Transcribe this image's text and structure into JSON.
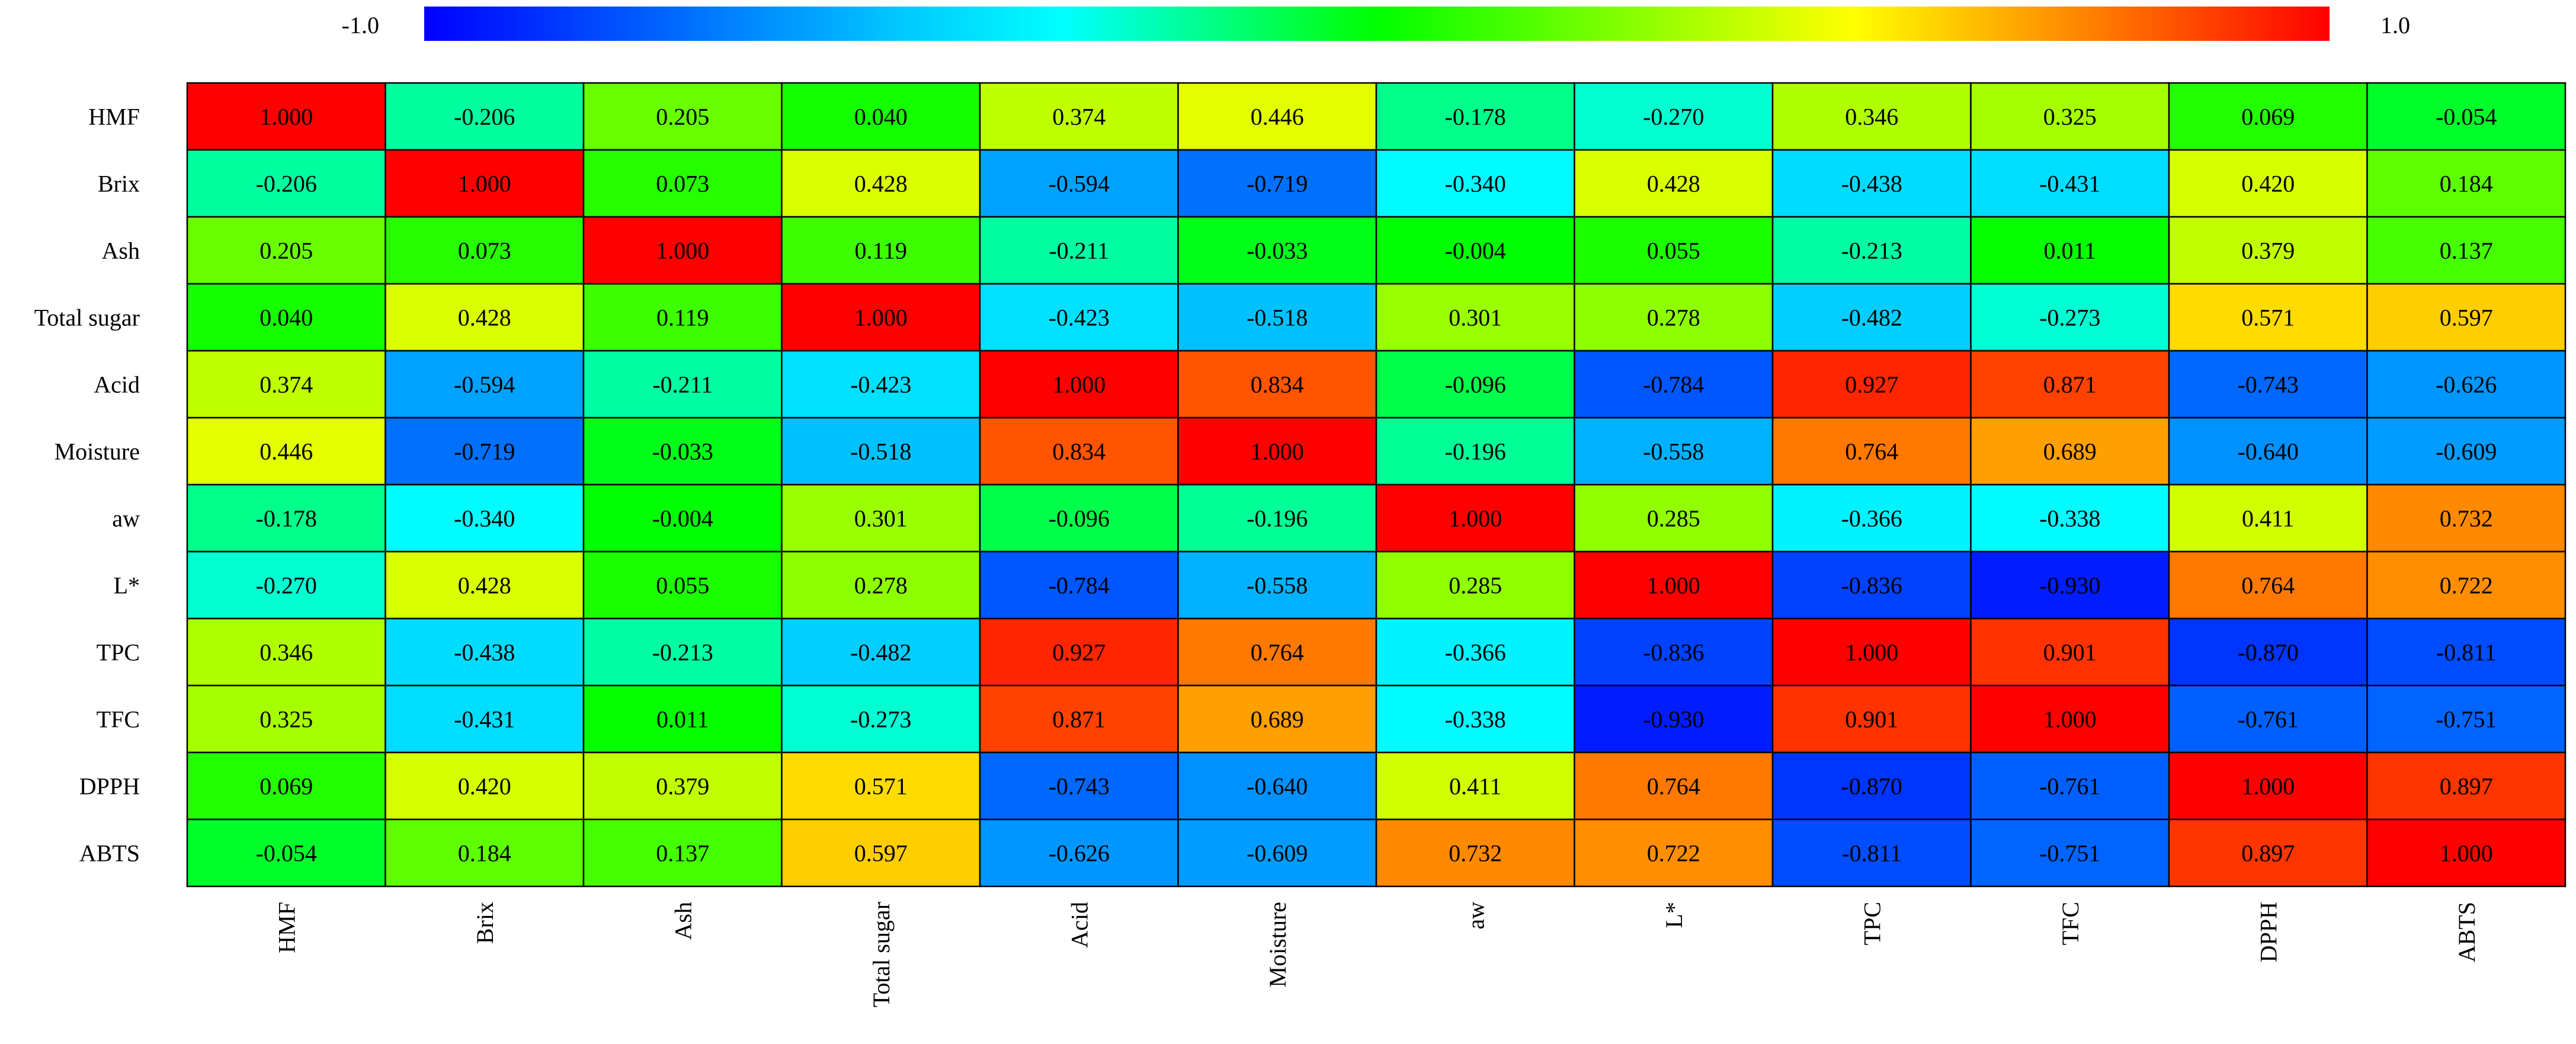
{
  "chart_data": {
    "type": "heatmap",
    "title": "",
    "variables": [
      "HMF",
      "Brix",
      "Ash",
      "Total sugar",
      "Acid",
      "Moisture",
      "aw",
      "L*",
      "TPC",
      "TFC",
      "DPPH",
      "ABTS"
    ],
    "matrix": [
      [
        1.0,
        -0.206,
        0.205,
        0.04,
        0.374,
        0.446,
        -0.178,
        -0.27,
        0.346,
        0.325,
        0.069,
        -0.054
      ],
      [
        -0.206,
        1.0,
        0.073,
        0.428,
        -0.594,
        -0.719,
        -0.34,
        0.428,
        -0.438,
        -0.431,
        0.42,
        0.184
      ],
      [
        0.205,
        0.073,
        1.0,
        0.119,
        -0.211,
        -0.033,
        -0.004,
        0.055,
        -0.213,
        0.011,
        0.379,
        0.137
      ],
      [
        0.04,
        0.428,
        0.119,
        1.0,
        -0.423,
        -0.518,
        0.301,
        0.278,
        -0.482,
        -0.273,
        0.571,
        0.597
      ],
      [
        0.374,
        -0.594,
        -0.211,
        -0.423,
        1.0,
        0.834,
        -0.096,
        -0.784,
        0.927,
        0.871,
        -0.743,
        -0.626
      ],
      [
        0.446,
        -0.719,
        -0.033,
        -0.518,
        0.834,
        1.0,
        -0.196,
        -0.558,
        0.764,
        0.689,
        -0.64,
        -0.609
      ],
      [
        -0.178,
        -0.34,
        -0.004,
        0.301,
        -0.096,
        -0.196,
        1.0,
        0.285,
        -0.366,
        -0.338,
        0.411,
        0.732
      ],
      [
        -0.27,
        0.428,
        0.055,
        0.278,
        -0.784,
        -0.558,
        0.285,
        1.0,
        -0.836,
        -0.93,
        0.764,
        0.722
      ],
      [
        0.346,
        -0.438,
        -0.213,
        -0.482,
        0.927,
        0.764,
        -0.366,
        -0.836,
        1.0,
        0.901,
        -0.87,
        -0.811
      ],
      [
        0.325,
        -0.431,
        0.011,
        -0.273,
        0.871,
        0.689,
        -0.338,
        -0.93,
        0.901,
        1.0,
        -0.761,
        -0.751
      ],
      [
        0.069,
        0.42,
        0.379,
        0.571,
        -0.743,
        -0.64,
        0.411,
        0.764,
        -0.87,
        -0.761,
        1.0,
        0.897
      ],
      [
        -0.054,
        0.184,
        0.137,
        0.597,
        -0.626,
        -0.609,
        0.732,
        0.722,
        -0.811,
        -0.751,
        0.897,
        1.0
      ]
    ],
    "value_format": "3 decimals",
    "colorbar": {
      "min": -1.0,
      "max": 1.0,
      "min_label": "-1.0",
      "max_label": "1.0",
      "stops": [
        {
          "value": -1.0,
          "color": "#0000ff"
        },
        {
          "value": -0.5,
          "color": "#00c8ff"
        },
        {
          "value": -0.33,
          "color": "#00ffff"
        },
        {
          "value": 0.0,
          "color": "#00ff00"
        },
        {
          "value": 0.5,
          "color": "#ffff00"
        },
        {
          "value": 1.0,
          "color": "#ff0000"
        }
      ]
    },
    "gridline_color": "#000000"
  }
}
